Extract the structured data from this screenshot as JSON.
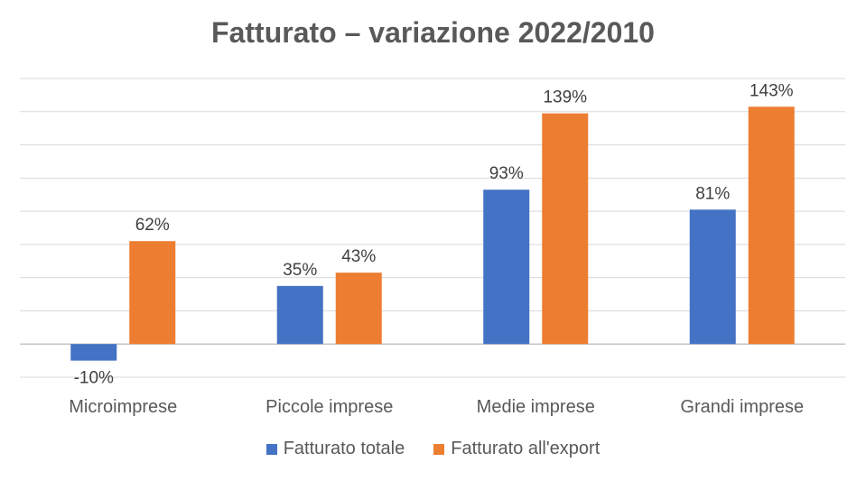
{
  "chart_data": {
    "type": "bar",
    "title": "Fatturato – variazione 2022/2010",
    "xlabel": "",
    "ylabel": "",
    "categories": [
      "Microimprese",
      "Piccole imprese",
      "Medie imprese",
      "Grandi imprese"
    ],
    "series": [
      {
        "name": "Fatturato totale",
        "color": "#4472C4",
        "values": [
          -10,
          35,
          93,
          81
        ],
        "labels": [
          "-10%",
          "35%",
          "93%",
          "81%"
        ]
      },
      {
        "name": "Fatturato all'export",
        "color": "#ED7D31",
        "values": [
          62,
          43,
          139,
          143
        ],
        "labels": [
          "62%",
          "43%",
          "139%",
          "143%"
        ]
      }
    ],
    "ylim": [
      -20,
      160
    ],
    "grid": true,
    "legend_position": "bottom",
    "data_labels": true
  }
}
